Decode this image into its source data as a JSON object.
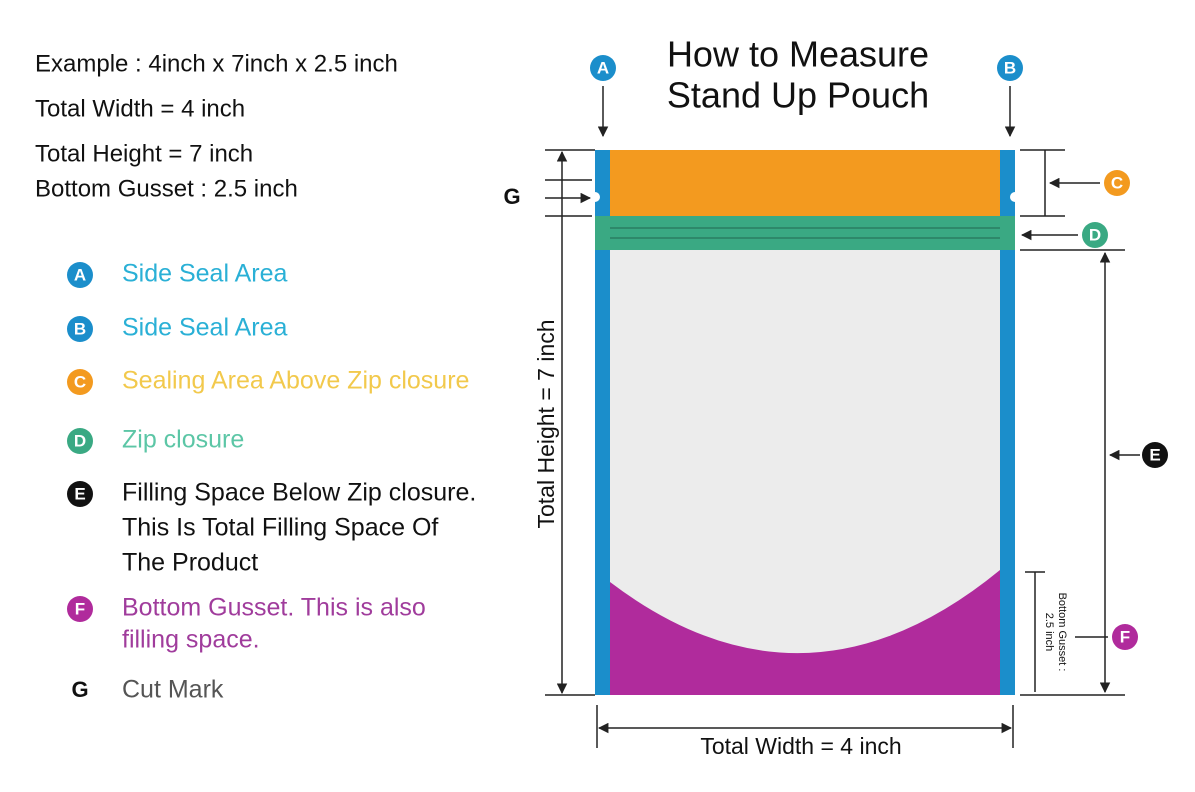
{
  "title": [
    "How to Measure",
    "Stand Up Pouch"
  ],
  "example": [
    "Example : 4inch x 7inch x 2.5 inch",
    "Total Width = 4 inch",
    "Total Height = 7 inch",
    "Bottom Gusset : 2.5 inch"
  ],
  "legend": [
    {
      "marker": "A",
      "lines": [
        "Side Seal Area"
      ]
    },
    {
      "marker": "B",
      "lines": [
        "Side Seal Area"
      ]
    },
    {
      "marker": "C",
      "lines": [
        "Sealing Area Above Zip closure"
      ]
    },
    {
      "marker": "D",
      "lines": [
        "Zip closure"
      ]
    },
    {
      "marker": "E",
      "lines": [
        "Filling Space Below Zip closure.",
        "This Is Total Filling Space Of",
        "The Product"
      ]
    },
    {
      "marker": "F",
      "lines": [
        "Bottom Gusset. This is also",
        "filling space."
      ]
    },
    {
      "marker": "G",
      "lines": [
        "Cut Mark"
      ]
    }
  ],
  "diagram": {
    "height_label": "Total Height = 7 inch",
    "width_label": "Total Width = 4 inch",
    "gusset_label": [
      "Bottom Gusset :",
      "2.5 inch"
    ]
  }
}
